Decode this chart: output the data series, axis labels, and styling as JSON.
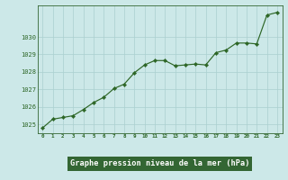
{
  "x": [
    0,
    1,
    2,
    3,
    4,
    5,
    6,
    7,
    8,
    9,
    10,
    11,
    12,
    13,
    14,
    15,
    16,
    17,
    18,
    19,
    20,
    21,
    22,
    23
  ],
  "y": [
    1024.8,
    1025.3,
    1025.4,
    1025.5,
    1025.85,
    1026.25,
    1026.55,
    1027.05,
    1027.3,
    1027.95,
    1028.4,
    1028.65,
    1028.65,
    1028.35,
    1028.4,
    1028.45,
    1028.4,
    1029.1,
    1029.25,
    1029.65,
    1029.65,
    1029.6,
    1031.25,
    1031.4
  ],
  "line_color": "#2d6626",
  "marker_color": "#2d6626",
  "plot_bg_color": "#cce8e8",
  "fig_bg_color": "#cce8e8",
  "grid_color": "#aacfcf",
  "xlabel": "Graphe pression niveau de la mer (hPa)",
  "xlabel_bg": "#336633",
  "xlabel_fg": "#ffffff",
  "tick_color": "#2d6626",
  "ylim": [
    1024.5,
    1031.8
  ],
  "yticks": [
    1025,
    1026,
    1027,
    1028,
    1029,
    1030
  ],
  "xtick_labels": [
    "0",
    "1",
    "2",
    "3",
    "4",
    "5",
    "6",
    "7",
    "8",
    "9",
    "10",
    "11",
    "12",
    "13",
    "14",
    "15",
    "16",
    "17",
    "18",
    "19",
    "20",
    "21",
    "22",
    "23"
  ],
  "spine_color": "#336633"
}
